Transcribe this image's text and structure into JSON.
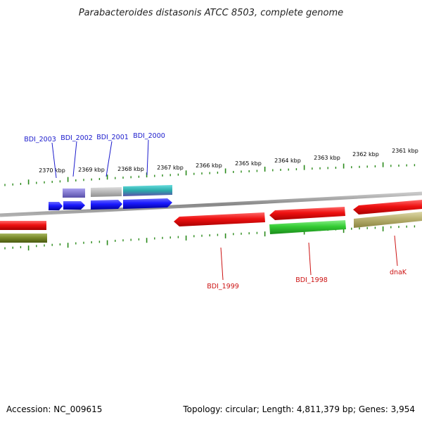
{
  "title": "Parabacteroides distasonis ATCC 8503, complete genome",
  "footer": {
    "accession": "Accession: NC_009615",
    "topology": "Topology: circular; Length: 4,811,379 bp; Genes: 3,954"
  },
  "ticks": [
    {
      "label": "2370 kbp"
    },
    {
      "label": "2369 kbp"
    },
    {
      "label": "2368 kbp"
    },
    {
      "label": "2367 kbp"
    },
    {
      "label": "2366 kbp"
    },
    {
      "label": "2365 kbp"
    },
    {
      "label": "2364 kbp"
    },
    {
      "label": "2363 kbp"
    },
    {
      "label": "2362 kbp"
    },
    {
      "label": "2361 kbp"
    }
  ],
  "genes_top": [
    {
      "label": "BDI_2003"
    },
    {
      "label": "BDI_2002"
    },
    {
      "label": "BDI_2001"
    },
    {
      "label": "BDI_2000"
    }
  ],
  "genes_bottom": [
    {
      "label": "BDI_1999"
    },
    {
      "label": "BDI_1998"
    },
    {
      "label": "dnaK"
    }
  ],
  "colors": {
    "forward_gene": "#1a1aff",
    "reverse_gene": "#ee1111",
    "tick": "#2a8a1a",
    "backbone": "#8a8a8a",
    "label_top": "#1a1acc",
    "label_bottom": "#cc1111",
    "olive": "#7a8a2a",
    "green": "#33cc33",
    "khaki": "#b8b070",
    "lavender": "#7a70cc",
    "grey": "#b0b0b0",
    "cyan": "#33bbbb"
  }
}
